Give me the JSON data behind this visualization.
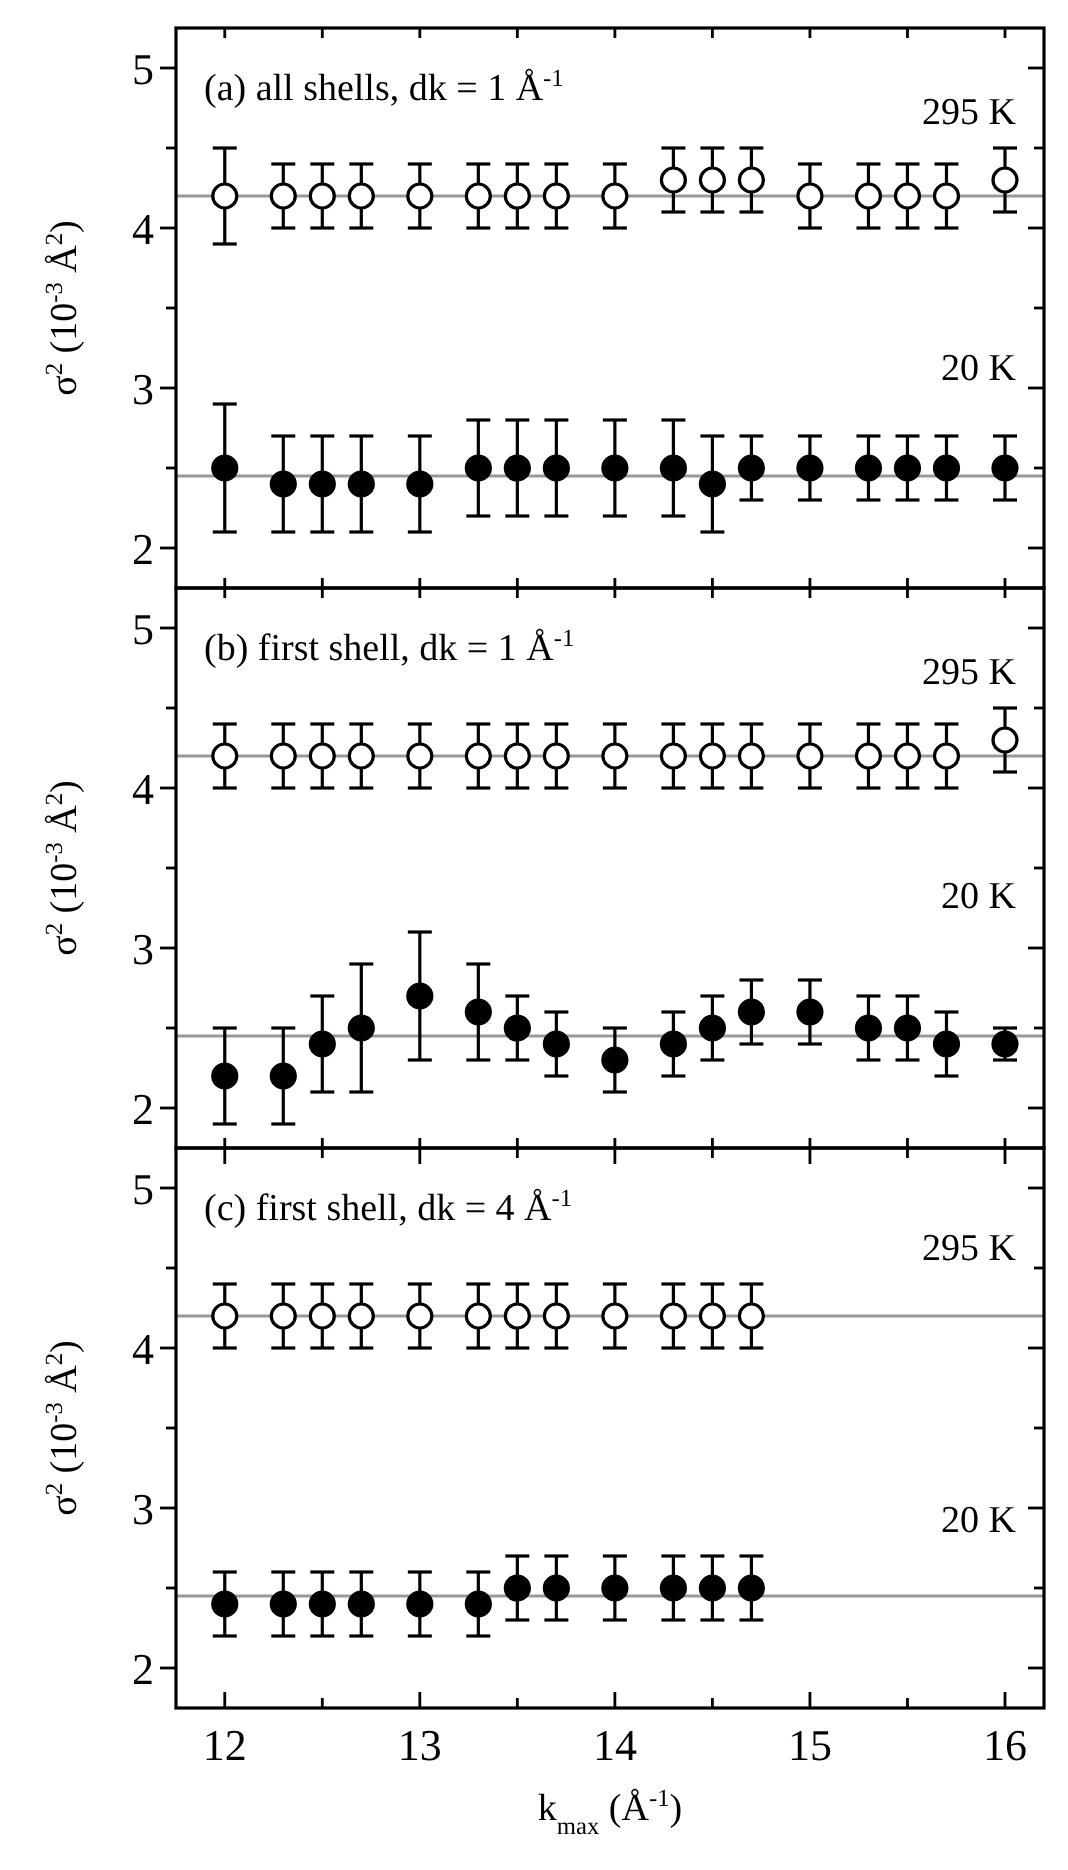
{
  "chart_data": [
    {
      "type": "scatter",
      "legend": "right",
      "title": "(a)  all shells,  dk = 1 Å$^{-1}$",
      "ylabel": "σ$^{2}$ (10$^{-3}$ Å$^{2}$)",
      "marker": "circle",
      "tick_labels": "y",
      "x": [
        12,
        12.3,
        12.5,
        12.7,
        13,
        13.3,
        13.5,
        13.7,
        14,
        14.3,
        14.5,
        14.7,
        15,
        15.3,
        15.5,
        15.7,
        16
      ],
      "series": [
        {
          "name": "295 K",
          "color": "#ffffff",
          "values": [
            4.2,
            4.2,
            4.2,
            4.2,
            4.2,
            4.2,
            4.2,
            4.2,
            4.2,
            4.3,
            4.3,
            4.3,
            4.2,
            4.2,
            4.2,
            4.2,
            4.3
          ],
          "errors": [
            0.3,
            0.2,
            0.2,
            0.2,
            0.2,
            0.2,
            0.2,
            0.2,
            0.2,
            0.2,
            0.2,
            0.2,
            0.2,
            0.2,
            0.2,
            0.2,
            0.2
          ]
        },
        {
          "name": "20 K",
          "color": "#000000",
          "values": [
            2.5,
            2.4,
            2.4,
            2.4,
            2.4,
            2.5,
            2.5,
            2.5,
            2.5,
            2.5,
            2.4,
            2.5,
            2.5,
            2.5,
            2.5,
            2.5,
            2.5
          ],
          "errors": [
            0.4,
            0.3,
            0.3,
            0.3,
            0.3,
            0.3,
            0.3,
            0.3,
            0.3,
            0.3,
            0.3,
            0.2,
            0.2,
            0.2,
            0.2,
            0.2,
            0.2
          ]
        }
      ],
      "ref_lines": [
        {
          "axis": "y",
          "value": 4.2,
          "color": "#999999"
        },
        {
          "axis": "y",
          "value": 2.45,
          "color": "#999999"
        }
      ],
      "xlim": [
        11.75,
        16.2
      ],
      "xticks": [
        {
          "value": 12,
          "label": null
        },
        {
          "value": 12.5,
          "label": null
        },
        {
          "value": 13,
          "label": null
        },
        {
          "value": 13.5,
          "label": null
        },
        {
          "value": 14,
          "label": null
        },
        {
          "value": 14.5,
          "label": null
        },
        {
          "value": 15,
          "label": null
        },
        {
          "value": 15.5,
          "label": null
        },
        {
          "value": 16,
          "label": null
        }
      ],
      "ylim": [
        1.75,
        5.25
      ],
      "yticks": [
        2,
        {
          "value": 2.5,
          "label": null
        },
        3,
        {
          "value": 3.5,
          "label": null
        },
        4,
        {
          "value": 4.5,
          "label": null
        },
        5
      ]
    },
    {
      "type": "scatter",
      "legend": "right",
      "title": "(b)  first shell,  dk = 1 Å$^{-1}$",
      "ylabel": "σ$^{2}$ (10$^{-3}$ Å$^{2}$)",
      "marker": "circle",
      "tick_labels": "y",
      "x": [
        12,
        12.3,
        12.5,
        12.7,
        13,
        13.3,
        13.5,
        13.7,
        14,
        14.3,
        14.5,
        14.7,
        15,
        15.3,
        15.5,
        15.7,
        16
      ],
      "series": [
        {
          "name": "295 K",
          "color": "#ffffff",
          "values": [
            4.2,
            4.2,
            4.2,
            4.2,
            4.2,
            4.2,
            4.2,
            4.2,
            4.2,
            4.2,
            4.2,
            4.2,
            4.2,
            4.2,
            4.2,
            4.2,
            4.3
          ],
          "errors": [
            0.2,
            0.2,
            0.2,
            0.2,
            0.2,
            0.2,
            0.2,
            0.2,
            0.2,
            0.2,
            0.2,
            0.2,
            0.2,
            0.2,
            0.2,
            0.2,
            0.2
          ]
        },
        {
          "name": "20 K",
          "color": "#000000",
          "values": [
            2.2,
            2.2,
            2.4,
            2.5,
            2.7,
            2.6,
            2.5,
            2.4,
            2.3,
            2.4,
            2.5,
            2.6,
            2.6,
            2.5,
            2.5,
            2.4,
            2.4
          ],
          "errors": [
            0.3,
            0.3,
            0.3,
            0.4,
            0.4,
            0.3,
            0.2,
            0.2,
            0.2,
            0.2,
            0.2,
            0.2,
            0.2,
            0.2,
            0.2,
            0.2,
            0.1
          ]
        }
      ],
      "ref_lines": [
        {
          "axis": "y",
          "value": 4.2,
          "color": "#999999"
        },
        {
          "axis": "y",
          "value": 2.45,
          "color": "#999999"
        }
      ],
      "xlim": [
        11.75,
        16.2
      ],
      "xticks": [
        {
          "value": 12,
          "label": null
        },
        {
          "value": 12.5,
          "label": null
        },
        {
          "value": 13,
          "label": null
        },
        {
          "value": 13.5,
          "label": null
        },
        {
          "value": 14,
          "label": null
        },
        {
          "value": 14.5,
          "label": null
        },
        {
          "value": 15,
          "label": null
        },
        {
          "value": 15.5,
          "label": null
        },
        {
          "value": 16,
          "label": null
        }
      ],
      "ylim": [
        1.75,
        5.25
      ],
      "yticks": [
        2,
        {
          "value": 2.5,
          "label": null
        },
        3,
        {
          "value": 3.5,
          "label": null
        },
        4,
        {
          "value": 4.5,
          "label": null
        },
        5
      ]
    },
    {
      "type": "scatter",
      "legend": "right",
      "title": "(c)  first shell,  dk = 4 Å$^{-1}$",
      "ylabel": "σ$^{2}$ (10$^{-3}$ Å$^{2}$)",
      "xlabel": "k$_{max}$  (Å$^{-1}$)",
      "marker": "circle",
      "x": [
        12,
        12.3,
        12.5,
        12.7,
        13,
        13.3,
        13.5,
        13.7,
        14,
        14.3,
        14.5,
        14.7
      ],
      "series": [
        {
          "name": "295 K",
          "color": "#ffffff",
          "values": [
            4.2,
            4.2,
            4.2,
            4.2,
            4.2,
            4.2,
            4.2,
            4.2,
            4.2,
            4.2,
            4.2,
            4.2
          ],
          "errors": [
            0.2,
            0.2,
            0.2,
            0.2,
            0.2,
            0.2,
            0.2,
            0.2,
            0.2,
            0.2,
            0.2,
            0.2
          ]
        },
        {
          "name": "20 K",
          "color": "#000000",
          "values": [
            2.4,
            2.4,
            2.4,
            2.4,
            2.4,
            2.4,
            2.5,
            2.5,
            2.5,
            2.5,
            2.5,
            2.5
          ],
          "errors": [
            0.2,
            0.2,
            0.2,
            0.2,
            0.2,
            0.2,
            0.2,
            0.2,
            0.2,
            0.2,
            0.2,
            0.2
          ]
        }
      ],
      "ref_lines": [
        {
          "axis": "y",
          "value": 4.2,
          "color": "#999999"
        },
        {
          "axis": "y",
          "value": 2.45,
          "color": "#999999"
        }
      ],
      "xlim": [
        11.75,
        16.2
      ],
      "xticks": [
        12,
        {
          "value": 12.5,
          "label": null
        },
        13,
        {
          "value": 13.5,
          "label": null
        },
        14,
        {
          "value": 14.5,
          "label": null
        },
        15,
        {
          "value": 15.5,
          "label": null
        },
        16
      ],
      "ylim": [
        1.75,
        5.25
      ],
      "yticks": [
        2,
        {
          "value": 2.5,
          "label": null
        },
        3,
        {
          "value": 3.5,
          "label": null
        },
        4,
        {
          "value": 4.5,
          "label": null
        },
        5
      ]
    }
  ]
}
